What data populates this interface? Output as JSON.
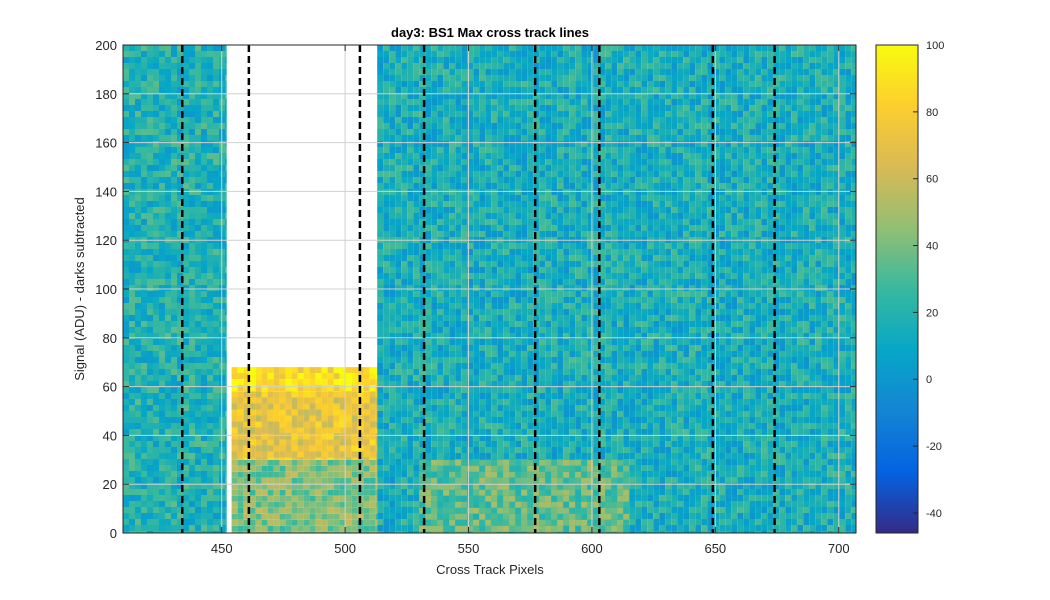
{
  "chart_data": {
    "type": "heatmap",
    "title": "day3: BS1  Max cross track lines",
    "xlabel": "Cross Track Pixels",
    "ylabel": "Signal (ADU) - darks subtracted",
    "xlim": [
      410,
      707
    ],
    "ylim": [
      0,
      200
    ],
    "x_ticks": [
      450,
      500,
      550,
      600,
      650,
      700
    ],
    "y_ticks": [
      0,
      20,
      40,
      60,
      80,
      100,
      120,
      140,
      160,
      180,
      200
    ],
    "grid": true,
    "colormap": "parula",
    "colorbar": {
      "range": [
        -46,
        100
      ],
      "ticks": [
        -40,
        -20,
        0,
        20,
        40,
        60,
        80,
        100
      ],
      "colors": [
        "#352a87",
        "#0363e1",
        "#1485d4",
        "#06a7c6",
        "#38b99e",
        "#92bf73",
        "#d9ba56",
        "#fcce2e",
        "#f9fb0e"
      ]
    },
    "heatmap_regions": [
      {
        "x_range": [
          410,
          452
        ],
        "y_range": [
          0,
          200
        ],
        "level": 18
      },
      {
        "x_range": [
          454,
          513
        ],
        "y_range": [
          0,
          30
        ],
        "level": 42
      },
      {
        "x_range": [
          454,
          513
        ],
        "y_range": [
          30,
          58
        ],
        "level": 72
      },
      {
        "x_range": [
          454,
          513
        ],
        "y_range": [
          58,
          68
        ],
        "level": 88
      },
      {
        "x_range": [
          513,
          707
        ],
        "y_range": [
          0,
          200
        ],
        "level": 15
      },
      {
        "x_range": [
          530,
          615
        ],
        "y_range": [
          0,
          30
        ],
        "level": 35
      }
    ],
    "max_cross_track_lines": [
      {
        "x": 434,
        "style": "dashed",
        "color": "#000000"
      },
      {
        "x": 461,
        "style": "dashed",
        "color": "#000000"
      },
      {
        "x": 506,
        "style": "dashed",
        "color": "#000000"
      },
      {
        "x": 532,
        "style": "dashed",
        "color": "#000000"
      },
      {
        "x": 577,
        "style": "dashed",
        "color": "#000000"
      },
      {
        "x": 603,
        "style": "dashed",
        "color": "#000000"
      },
      {
        "x": 649,
        "style": "dashed",
        "color": "#000000"
      },
      {
        "x": 674,
        "style": "dashed",
        "color": "#000000"
      }
    ]
  }
}
